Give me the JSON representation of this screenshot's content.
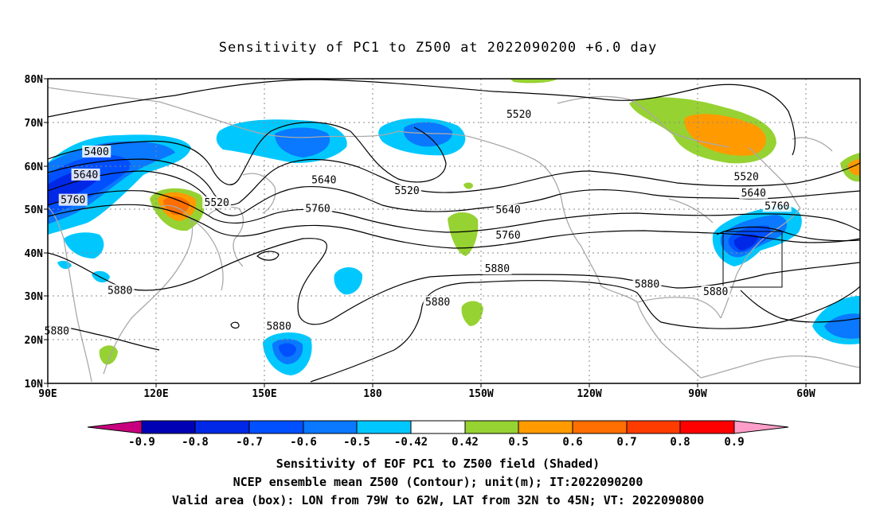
{
  "title": "Sensitivity of PC1 to Z500 at 2022090200 +6.0 day",
  "lat_labels": [
    "80N",
    "70N",
    "60N",
    "50N",
    "40N",
    "30N",
    "20N",
    "10N"
  ],
  "lon_labels": [
    "90E",
    "120E",
    "150E",
    "180",
    "150W",
    "120W",
    "90W",
    "60W"
  ],
  "contour_labels": [
    {
      "text": "5520",
      "lon": 220.5,
      "lat": 71.8
    },
    {
      "text": "5400",
      "lon": 103.5,
      "lat": 63.2
    },
    {
      "text": "5640",
      "lon": 100.5,
      "lat": 57.9
    },
    {
      "text": "5760",
      "lon": 97.0,
      "lat": 52.1
    },
    {
      "text": "5520",
      "lon": 136.8,
      "lat": 51.5
    },
    {
      "text": "5640",
      "lon": 166.5,
      "lat": 56.7
    },
    {
      "text": "5760",
      "lon": 164.8,
      "lat": 50.1
    },
    {
      "text": "5520",
      "lon": 189.5,
      "lat": 54.2
    },
    {
      "text": "5640",
      "lon": 217.5,
      "lat": 49.8
    },
    {
      "text": "5760",
      "lon": 217.5,
      "lat": 44.0
    },
    {
      "text": "5880",
      "lon": 214.5,
      "lat": 36.3
    },
    {
      "text": "5520",
      "lon": 283.5,
      "lat": 57.4
    },
    {
      "text": "5640",
      "lon": 285.5,
      "lat": 53.7
    },
    {
      "text": "5760",
      "lon": 292.0,
      "lat": 50.7
    },
    {
      "text": "5880",
      "lon": 110.0,
      "lat": 31.3
    },
    {
      "text": "5880",
      "lon": 92.5,
      "lat": 22.0
    },
    {
      "text": "5880",
      "lon": 198.0,
      "lat": 28.6
    },
    {
      "text": "5880",
      "lon": 154.0,
      "lat": 23.1
    },
    {
      "text": "5880",
      "lon": 256.0,
      "lat": 32.8
    },
    {
      "text": "5880",
      "lon": 275.0,
      "lat": 31.0
    }
  ],
  "colorbar": {
    "labels": [
      "-0.9",
      "-0.8",
      "-0.7",
      "-0.6",
      "-0.5",
      "-0.42",
      "0.42",
      "0.5",
      "0.6",
      "0.7",
      "0.8",
      "0.9"
    ],
    "colors": [
      "#c8007e",
      "#0000b4",
      "#0028e6",
      "#0050ff",
      "#0a78ff",
      "#00c8ff",
      "#ffffff",
      "#96d232",
      "#ff9b00",
      "#ff6e00",
      "#ff3c00",
      "#ff0000",
      "#ff9ec8"
    ]
  },
  "caption": [
    "Sensitivity of EOF PC1 to Z500 field (Shaded)",
    "NCEP ensemble mean Z500 (Contour); unit(m); IT:2022090200",
    "Valid area (box): LON from 79W to 62W, LAT from 32N to 45N; VT: 2022090800"
  ],
  "valid_box": {
    "lon_min": 281,
    "lon_max": 298,
    "lat_min": 32,
    "lat_max": 45
  },
  "map_colors": {
    "coast": "#a9a9a9",
    "grid": "#8a8a8a",
    "contour": "#000000"
  }
}
